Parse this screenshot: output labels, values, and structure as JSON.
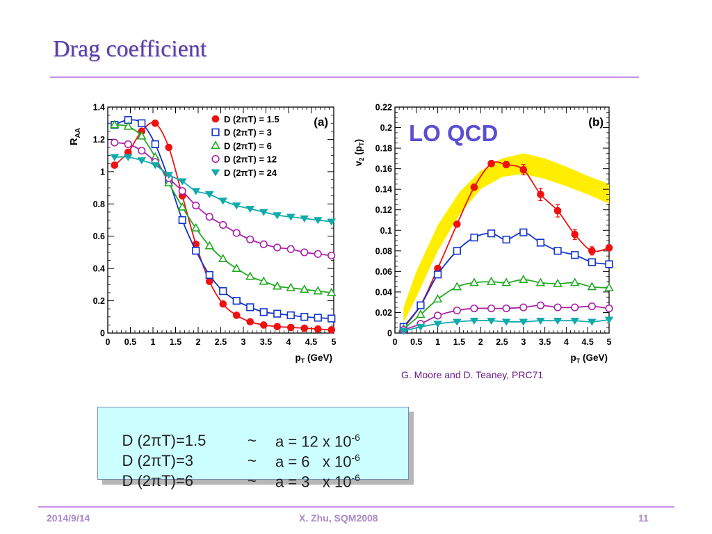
{
  "slide": {
    "title": "Drag coefficient",
    "credit": "G. Moore and D. Teaney, PRC71",
    "equations": [
      {
        "lhs": "D (2πT)=1.5",
        "tilde": "~",
        "rhs": "a = 12 x 10",
        "exp": "-6"
      },
      {
        "lhs": "D (2πT)=3",
        "tilde": "~",
        "rhs": "a = 6   x 10",
        "exp": "-6"
      },
      {
        "lhs": "D (2πT)=6",
        "tilde": "~",
        "rhs": "a = 3   x 10",
        "exp": "-6"
      }
    ],
    "footer": {
      "date": "2014/9/14",
      "center": "X. Zhu, SQM2008",
      "page": "11"
    }
  },
  "chart_data": [
    {
      "type": "line",
      "panel_label": "(a)",
      "xlabel": "p",
      "xlabel_sub": "T",
      "xlabel_unit": " (GeV)",
      "ylabel": "R",
      "ylabel_sub": "AA",
      "xlim": [
        0,
        5
      ],
      "ylim": [
        0,
        1.4
      ],
      "xticks": [
        "0",
        "0.5",
        "1",
        "1.5",
        "2",
        "2.5",
        "3",
        "3.5",
        "4",
        "4.5",
        "5"
      ],
      "yticks": [
        "0",
        "0.2",
        "0.4",
        "0.6",
        "0.8",
        "1",
        "1.2",
        "1.4"
      ],
      "legend_position": "top-right",
      "series": [
        {
          "name": "D (2πT) = 1.5",
          "color": "#ee1111",
          "marker": "circle-filled",
          "x": [
            0.15,
            0.45,
            0.75,
            1.05,
            1.35,
            1.65,
            1.95,
            2.25,
            2.55,
            2.85,
            3.15,
            3.45,
            3.75,
            4.05,
            4.35,
            4.65,
            4.95
          ],
          "y": [
            1.04,
            1.12,
            1.25,
            1.3,
            1.15,
            0.85,
            0.55,
            0.32,
            0.18,
            0.11,
            0.07,
            0.05,
            0.04,
            0.035,
            0.03,
            0.025,
            0.02
          ]
        },
        {
          "name": "D (2πT) = 3",
          "color": "#1133cc",
          "marker": "square-open",
          "x": [
            0.15,
            0.45,
            0.75,
            1.05,
            1.35,
            1.65,
            1.95,
            2.25,
            2.55,
            2.85,
            3.15,
            3.45,
            3.75,
            4.05,
            4.35,
            4.65,
            4.95
          ],
          "y": [
            1.29,
            1.32,
            1.3,
            1.17,
            0.95,
            0.7,
            0.51,
            0.36,
            0.26,
            0.2,
            0.16,
            0.13,
            0.12,
            0.11,
            0.1,
            0.095,
            0.09
          ]
        },
        {
          "name": "D (2πT) = 6",
          "color": "#22aa22",
          "marker": "triangle-up-open",
          "x": [
            0.15,
            0.45,
            0.75,
            1.05,
            1.35,
            1.65,
            1.95,
            2.25,
            2.55,
            2.85,
            3.15,
            3.45,
            3.75,
            4.05,
            4.35,
            4.65,
            4.95
          ],
          "y": [
            1.29,
            1.28,
            1.22,
            1.09,
            0.93,
            0.78,
            0.65,
            0.54,
            0.46,
            0.4,
            0.35,
            0.32,
            0.29,
            0.28,
            0.27,
            0.26,
            0.25
          ]
        },
        {
          "name": "D (2πT) = 12",
          "color": "#aa22aa",
          "marker": "circle-open",
          "x": [
            0.15,
            0.45,
            0.75,
            1.05,
            1.35,
            1.65,
            1.95,
            2.25,
            2.55,
            2.85,
            3.15,
            3.45,
            3.75,
            4.05,
            4.35,
            4.65,
            4.95
          ],
          "y": [
            1.18,
            1.17,
            1.13,
            1.06,
            0.96,
            0.88,
            0.79,
            0.72,
            0.67,
            0.62,
            0.58,
            0.55,
            0.53,
            0.52,
            0.5,
            0.49,
            0.48
          ]
        },
        {
          "name": "D (2πT) = 24",
          "color": "#11aaaa",
          "marker": "triangle-down-filled",
          "x": [
            0.15,
            0.45,
            0.75,
            1.05,
            1.35,
            1.65,
            1.95,
            2.25,
            2.55,
            2.85,
            3.15,
            3.45,
            3.75,
            4.05,
            4.35,
            4.65,
            4.95
          ],
          "y": [
            1.09,
            1.09,
            1.07,
            1.04,
            0.98,
            0.94,
            0.88,
            0.86,
            0.82,
            0.79,
            0.77,
            0.75,
            0.73,
            0.72,
            0.71,
            0.7,
            0.69
          ]
        }
      ]
    },
    {
      "type": "line",
      "panel_label": "(b)",
      "annotation": "LO QCD",
      "xlabel": "p",
      "xlabel_sub": "T",
      "xlabel_unit": " (GeV)",
      "ylabel": "v",
      "ylabel_sub": "2",
      "ylabel_arg": " (p",
      "ylabel_arg_sub": "T",
      "ylabel_close": ")",
      "xlim": [
        0,
        5
      ],
      "ylim": [
        0,
        0.22
      ],
      "xticks": [
        "0",
        "0.5",
        "1",
        "1.5",
        "2",
        "2.5",
        "3",
        "3.5",
        "4",
        "4.5",
        "5"
      ],
      "yticks": [
        "0",
        "0.02",
        "0.04",
        "0.06",
        "0.08",
        "0.1",
        "0.12",
        "0.14",
        "0.16",
        "0.18",
        "0.2",
        "0.22"
      ],
      "band": {
        "color": "#ffee00",
        "x": [
          0.2,
          0.5,
          1.0,
          1.5,
          2.0,
          2.5,
          3.0,
          3.5,
          4.0,
          4.5,
          5.0
        ],
        "low": [
          0.01,
          0.035,
          0.08,
          0.115,
          0.14,
          0.152,
          0.155,
          0.15,
          0.143,
          0.135,
          0.126
        ],
        "high": [
          0.025,
          0.06,
          0.105,
          0.137,
          0.158,
          0.17,
          0.175,
          0.17,
          0.162,
          0.153,
          0.145
        ]
      },
      "series": [
        {
          "color": "#ee1111",
          "marker": "circle-filled",
          "errorbars": true,
          "x": [
            0.2,
            0.6,
            1.0,
            1.45,
            1.85,
            2.25,
            2.6,
            3.0,
            3.4,
            3.8,
            4.2,
            4.6,
            5.0
          ],
          "y": [
            0.005,
            0.027,
            0.063,
            0.106,
            0.142,
            0.165,
            0.164,
            0.159,
            0.135,
            0.119,
            0.096,
            0.08,
            0.083
          ],
          "err": [
            0.002,
            0.002,
            0.002,
            0.002,
            0.003,
            0.003,
            0.003,
            0.005,
            0.006,
            0.006,
            0.005,
            0.004,
            0.003
          ]
        },
        {
          "color": "#1133cc",
          "marker": "square-open",
          "x": [
            0.2,
            0.6,
            1.0,
            1.45,
            1.85,
            2.25,
            2.6,
            3.0,
            3.4,
            3.8,
            4.2,
            4.6,
            5.0
          ],
          "y": [
            0.006,
            0.027,
            0.057,
            0.08,
            0.093,
            0.097,
            0.091,
            0.098,
            0.088,
            0.08,
            0.076,
            0.069,
            0.067
          ]
        },
        {
          "color": "#22aa22",
          "marker": "triangle-up-open",
          "x": [
            0.2,
            0.6,
            1.0,
            1.45,
            1.85,
            2.25,
            2.6,
            3.0,
            3.4,
            3.8,
            4.2,
            4.6,
            5.0
          ],
          "y": [
            0.004,
            0.018,
            0.033,
            0.045,
            0.049,
            0.05,
            0.049,
            0.052,
            0.049,
            0.048,
            0.049,
            0.045,
            0.044
          ]
        },
        {
          "color": "#aa22aa",
          "marker": "circle-open",
          "x": [
            0.2,
            0.6,
            1.0,
            1.45,
            1.85,
            2.25,
            2.6,
            3.0,
            3.4,
            3.8,
            4.2,
            4.6,
            5.0
          ],
          "y": [
            0.003,
            0.009,
            0.017,
            0.022,
            0.024,
            0.024,
            0.024,
            0.025,
            0.027,
            0.025,
            0.025,
            0.026,
            0.024
          ]
        },
        {
          "color": "#11aaaa",
          "marker": "triangle-down-filled",
          "x": [
            0.2,
            0.6,
            1.0,
            1.45,
            1.85,
            2.25,
            2.6,
            3.0,
            3.4,
            3.8,
            4.2,
            4.6,
            5.0
          ],
          "y": [
            0.002,
            0.006,
            0.009,
            0.011,
            0.012,
            0.012,
            0.011,
            0.011,
            0.012,
            0.012,
            0.012,
            0.011,
            0.013
          ]
        }
      ]
    }
  ]
}
